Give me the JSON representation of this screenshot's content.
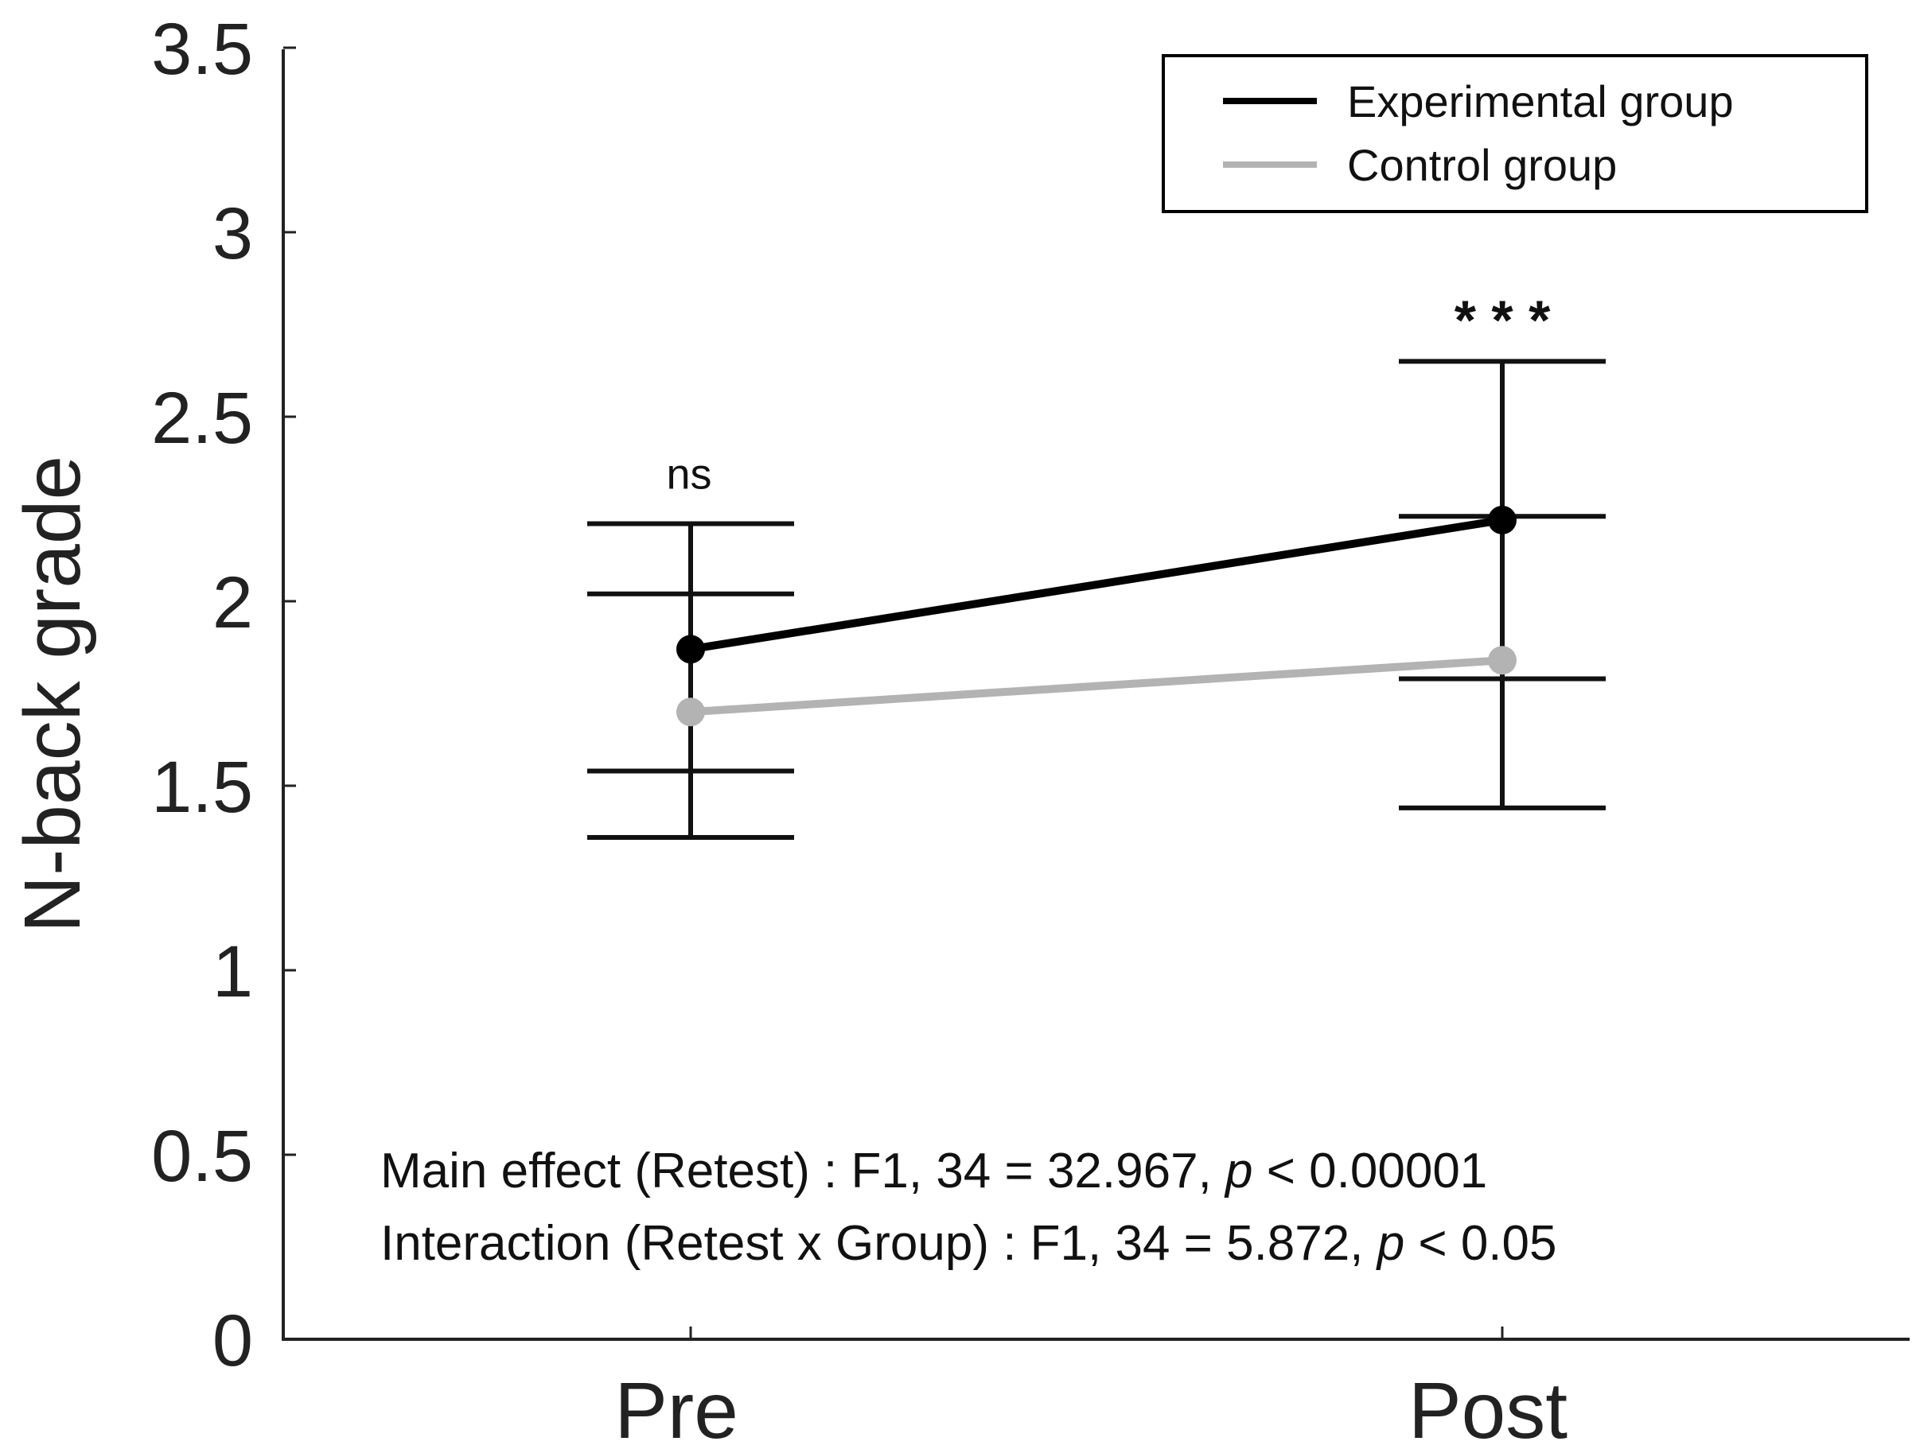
{
  "chart_data": {
    "type": "line",
    "categories": [
      "Pre",
      "Post"
    ],
    "ylabel": "N-back grade",
    "xlabel": "",
    "ylim": [
      0,
      3.5
    ],
    "yticks": [
      0,
      0.5,
      1,
      1.5,
      2,
      2.5,
      3,
      3.5
    ],
    "ytick_labels": [
      "0",
      "0.5",
      "1",
      "1.5",
      "2",
      "2.5",
      "3",
      "3.5"
    ],
    "grid": false,
    "legend_position": "top-right",
    "series": [
      {
        "name": "Experimental group",
        "color": "#000000",
        "values": [
          1.87,
          2.22
        ],
        "error_low": [
          1.54,
          1.79
        ],
        "error_high": [
          2.21,
          2.65
        ]
      },
      {
        "name": "Control group",
        "color": "#b3b3b3",
        "values": [
          1.7,
          1.84
        ],
        "error_low": [
          1.36,
          1.44
        ],
        "error_high": [
          2.02,
          2.23
        ]
      }
    ],
    "significance": [
      "ns",
      "* * *"
    ],
    "annotations": {
      "main_effect_prefix": "Main effect (Retest) : F1, 34 = 32.967, ",
      "main_effect_p": "p",
      "main_effect_suffix": " < 0.00001",
      "interaction_prefix": "Interaction (Retest x Group) : F1, 34 = 5.872, ",
      "interaction_p": "p",
      "interaction_suffix": " < 0.05"
    }
  }
}
